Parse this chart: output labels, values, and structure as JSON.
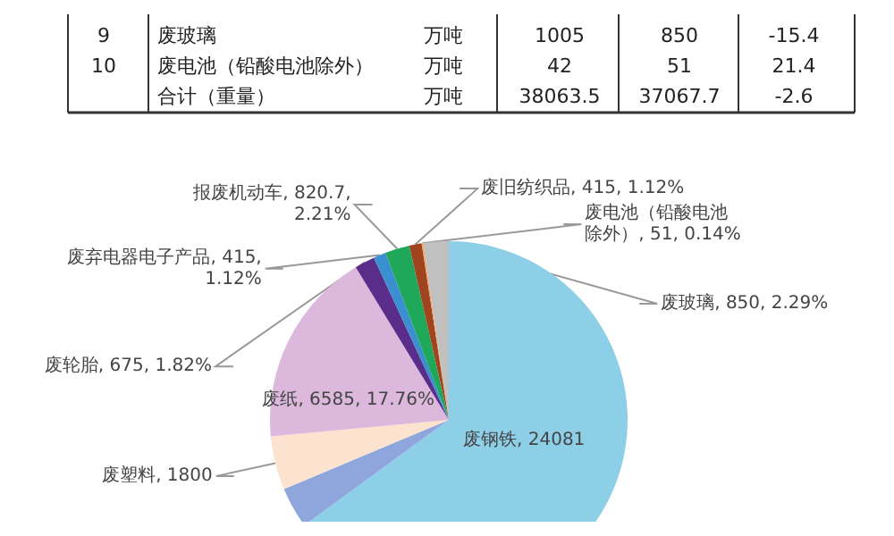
{
  "chart_data": [
    {
      "type": "other",
      "annotations": [
        "9",
        "废玻璃",
        "万吨",
        "1005",
        "850",
        "-15.4",
        "10",
        "废电池（铅酸电池除外）",
        "万吨",
        "42",
        "51",
        "21.4",
        "合计（重量）",
        "万吨",
        "38063.5",
        "37067.7",
        "-2.6"
      ]
    },
    {
      "type": "pie",
      "categories": [
        "废钢铁",
        null,
        "废塑料",
        "废纸",
        "废轮胎",
        "废弃电器电子产品",
        "报废机动车",
        "废旧纺织品",
        "废电池（铅酸电池除外）",
        "废玻璃"
      ],
      "values": [
        24081,
        1375,
        1800,
        6585,
        675,
        415,
        820.7,
        415,
        51,
        850
      ],
      "value_labels": [
        "24081",
        null,
        "1800",
        "6585, 17.76%",
        "675, 1.82%",
        "415, 1.12%",
        "820.7, 2.21%",
        "415, 1.12%",
        "51, 0.14%",
        "850, 2.29%"
      ],
      "colors": [
        "#8ecfe8",
        "#8fa6dc",
        "#fbe3d0",
        "#dbb8dc",
        "#5b2d8a",
        "#3a8fd0",
        "#1fa85a",
        "#a0441f",
        "#f0a060",
        "#c0c0c0"
      ],
      "legend": false
    }
  ]
}
